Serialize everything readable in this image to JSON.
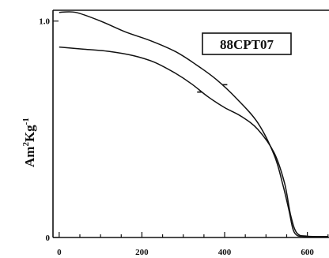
{
  "chart_data": {
    "type": "line",
    "title": "",
    "annotation": "88CPT07",
    "xlabel": "",
    "ylabel": "Am²Kg⁻¹",
    "ylabel_parts": {
      "base": "Am",
      "sup1": "2",
      "mid": "Kg",
      "sup2": "-1"
    },
    "xlim": [
      -15,
      660
    ],
    "ylim": [
      0,
      1.05
    ],
    "x_ticks": [
      0,
      200,
      400,
      600
    ],
    "y_ticks": [
      0,
      1.0
    ],
    "x_tick_labels": [
      "0",
      "200",
      "400",
      "600"
    ],
    "y_tick_labels": [
      "0",
      "1.0"
    ],
    "x_edge_label": "",
    "grid": false,
    "series": [
      {
        "direction": "heating",
        "x": [
          0,
          40,
          100,
          160,
          220,
          280,
          330,
          380,
          430,
          480,
          520,
          540,
          555,
          565,
          575,
          590,
          620,
          650
        ],
        "y": [
          1.04,
          1.04,
          1.0,
          0.95,
          0.91,
          0.86,
          0.8,
          0.73,
          0.64,
          0.53,
          0.38,
          0.25,
          0.13,
          0.04,
          0.01,
          0.005,
          0.004,
          0.004
        ]
      },
      {
        "direction": "cooling",
        "x": [
          0,
          60,
          120,
          180,
          230,
          280,
          320,
          360,
          400,
          440,
          480,
          520,
          545,
          560,
          575,
          600,
          650
        ],
        "y": [
          0.88,
          0.87,
          0.86,
          0.84,
          0.81,
          0.76,
          0.71,
          0.65,
          0.6,
          0.56,
          0.5,
          0.39,
          0.25,
          0.1,
          0.02,
          0.006,
          0.004
        ]
      }
    ]
  }
}
